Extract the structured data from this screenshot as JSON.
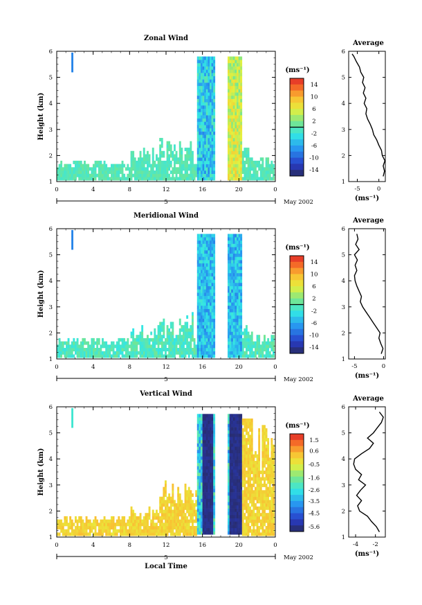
{
  "chart_data": [
    {
      "type": "heatmap",
      "title": "Zonal Wind",
      "ylabel": "Height (km)",
      "yticks": [
        1,
        2,
        3,
        4,
        5,
        6
      ],
      "ylim": [
        1,
        6
      ],
      "xticks": [
        "0",
        "4",
        "8",
        "12",
        "16",
        "20",
        "0"
      ],
      "xlim": [
        0,
        24
      ],
      "date_label": "5",
      "month_label": "May 2002",
      "colorbar": {
        "unit": "(ms⁻¹)",
        "ticks": [
          "14",
          "10",
          "6",
          "2",
          "-2",
          "-6",
          "-10",
          "-14"
        ],
        "range": [
          -16,
          16
        ],
        "zero_line": 0
      },
      "average": {
        "title": "Average",
        "xlabel": "(ms⁻¹)",
        "xticks": [
          "-5",
          "0"
        ],
        "xlim": [
          -7,
          1.5
        ],
        "profile": [
          [
            1.2,
            1.0
          ],
          [
            1.4,
            1.3
          ],
          [
            1.6,
            1.0
          ],
          [
            1.8,
            1.4
          ],
          [
            2.0,
            0.8
          ],
          [
            2.2,
            0.6
          ],
          [
            2.4,
            0.0
          ],
          [
            2.6,
            -0.5
          ],
          [
            2.8,
            -1.2
          ],
          [
            3.0,
            -1.5
          ],
          [
            3.2,
            -2.0
          ],
          [
            3.4,
            -2.6
          ],
          [
            3.6,
            -3.0
          ],
          [
            3.8,
            -2.8
          ],
          [
            4.0,
            -3.4
          ],
          [
            4.2,
            -3.0
          ],
          [
            4.4,
            -3.6
          ],
          [
            4.6,
            -3.2
          ],
          [
            4.8,
            -3.8
          ],
          [
            5.0,
            -3.5
          ],
          [
            5.2,
            -4.2
          ],
          [
            5.4,
            -4.5
          ],
          [
            5.6,
            -5.2
          ],
          [
            5.8,
            -5.8
          ],
          [
            5.9,
            -6.2
          ]
        ]
      }
    },
    {
      "type": "heatmap",
      "title": "Meridional Wind",
      "ylabel": "Height (km)",
      "yticks": [
        1,
        2,
        3,
        4,
        5,
        6
      ],
      "ylim": [
        1,
        6
      ],
      "xticks": [
        "0",
        "4",
        "8",
        "12",
        "16",
        "20",
        "0"
      ],
      "xlim": [
        0,
        24
      ],
      "date_label": "5",
      "month_label": "May 2002",
      "colorbar": {
        "unit": "(ms⁻¹)",
        "ticks": [
          "14",
          "10",
          "6",
          "2",
          "-2",
          "-6",
          "-10",
          "-14"
        ],
        "range": [
          -16,
          16
        ],
        "zero_line": 0
      },
      "average": {
        "title": "Average",
        "xlabel": "(ms⁻¹)",
        "xticks": [
          "-5",
          "0"
        ],
        "xlim": [
          -6,
          0.3
        ],
        "profile": [
          [
            1.2,
            -0.4
          ],
          [
            1.4,
            -0.1
          ],
          [
            1.6,
            -0.5
          ],
          [
            1.8,
            -0.8
          ],
          [
            2.0,
            -0.6
          ],
          [
            2.2,
            -1.2
          ],
          [
            2.4,
            -1.8
          ],
          [
            2.6,
            -2.4
          ],
          [
            2.8,
            -3.0
          ],
          [
            3.0,
            -3.6
          ],
          [
            3.2,
            -4.0
          ],
          [
            3.4,
            -3.8
          ],
          [
            3.6,
            -4.2
          ],
          [
            3.8,
            -4.6
          ],
          [
            4.0,
            -4.9
          ],
          [
            4.2,
            -5.0
          ],
          [
            4.4,
            -4.6
          ],
          [
            4.6,
            -4.9
          ],
          [
            4.8,
            -4.5
          ],
          [
            5.0,
            -5.0
          ],
          [
            5.2,
            -4.2
          ],
          [
            5.4,
            -4.8
          ],
          [
            5.6,
            -4.4
          ],
          [
            5.8,
            -4.6
          ]
        ]
      }
    },
    {
      "type": "heatmap",
      "title": "Vertical Wind",
      "ylabel": "Height (km)",
      "xlabel": "Local Time",
      "yticks": [
        1,
        2,
        3,
        4,
        5,
        6
      ],
      "ylim": [
        1,
        6
      ],
      "xticks": [
        "0",
        "4",
        "8",
        "12",
        "16",
        "20",
        "0"
      ],
      "xlim": [
        0,
        24
      ],
      "date_label": "5",
      "month_label": "May 2002",
      "colorbar": {
        "unit": "(ms⁻¹)",
        "ticks": [
          "1.5",
          "0.6",
          "-0.5",
          "-1.6",
          "-2.6",
          "-3.5",
          "-4.5",
          "-5.6"
        ],
        "range": [
          -6.0,
          2.0
        ]
      },
      "average": {
        "title": "Average",
        "xlabel": "(ms⁻¹)",
        "xticks": [
          "-4",
          "-2"
        ],
        "xlim": [
          -4.7,
          -1.0
        ],
        "profile": [
          [
            1.2,
            -1.6
          ],
          [
            1.4,
            -1.9
          ],
          [
            1.6,
            -2.4
          ],
          [
            1.8,
            -2.8
          ],
          [
            2.0,
            -3.6
          ],
          [
            2.2,
            -3.8
          ],
          [
            2.4,
            -3.4
          ],
          [
            2.6,
            -3.9
          ],
          [
            2.8,
            -3.5
          ],
          [
            3.0,
            -3.0
          ],
          [
            3.2,
            -3.7
          ],
          [
            3.4,
            -3.4
          ],
          [
            3.6,
            -4.0
          ],
          [
            3.8,
            -4.2
          ],
          [
            4.0,
            -4.1
          ],
          [
            4.2,
            -3.4
          ],
          [
            4.4,
            -2.6
          ],
          [
            4.6,
            -2.2
          ],
          [
            4.8,
            -2.8
          ],
          [
            5.0,
            -2.2
          ],
          [
            5.2,
            -1.8
          ],
          [
            5.4,
            -1.4
          ],
          [
            5.6,
            -1.2
          ],
          [
            5.8,
            -1.6
          ]
        ]
      }
    }
  ]
}
